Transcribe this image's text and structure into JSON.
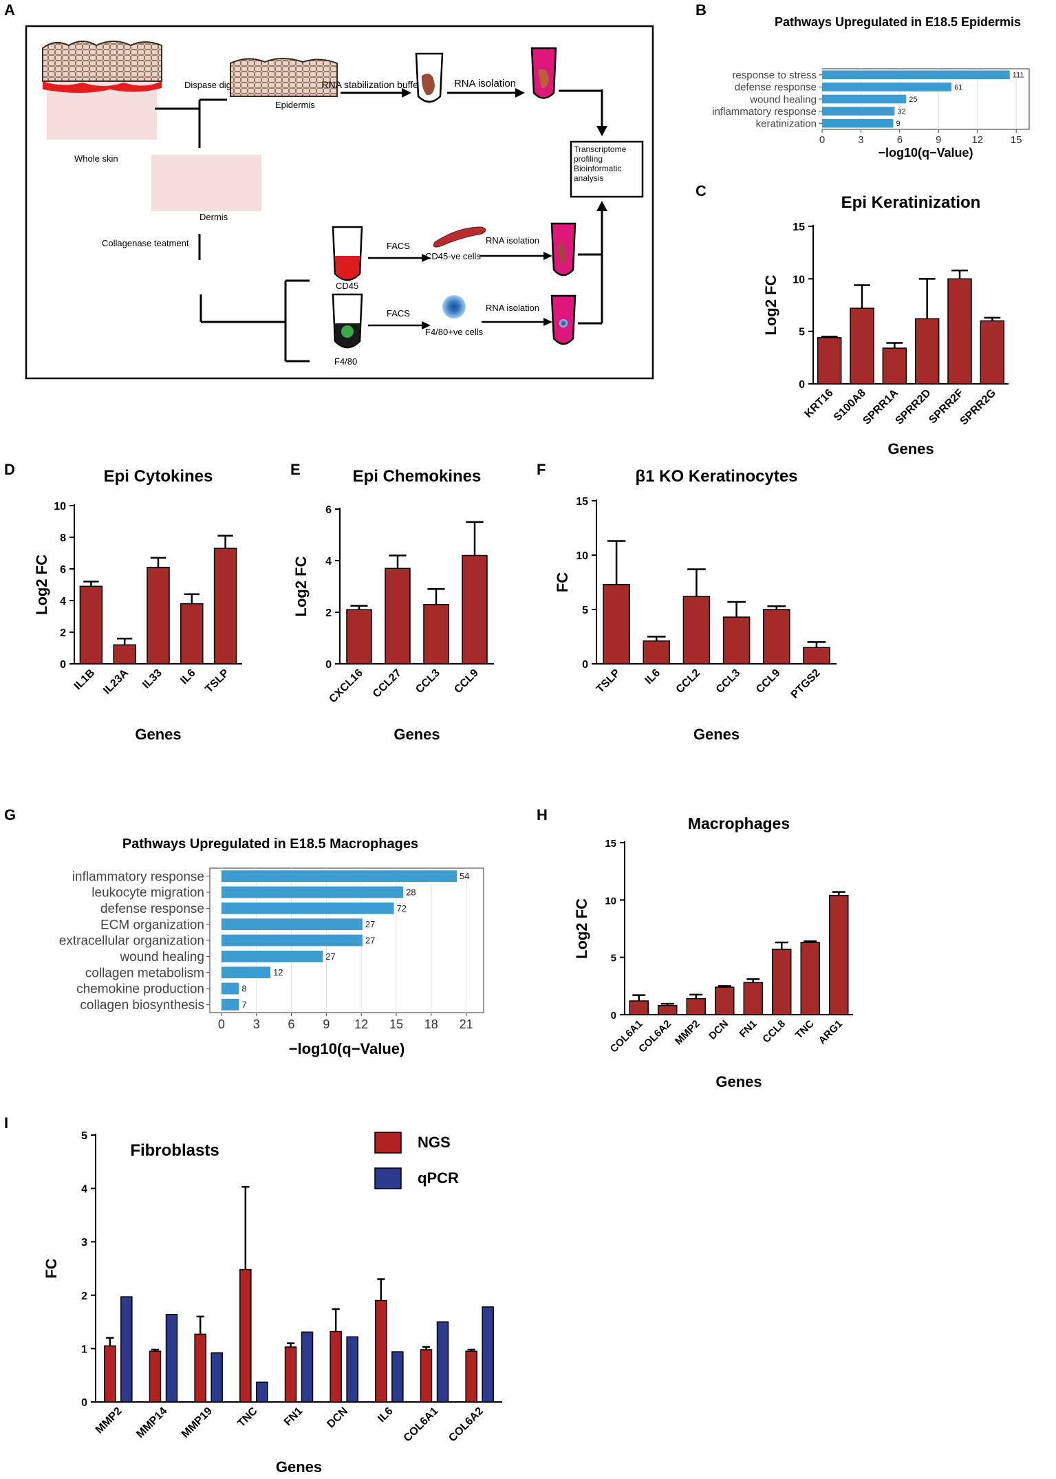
{
  "colors": {
    "bar": "#A52A2A",
    "bar_light": "#3C9CCF",
    "ngs": "#B22222",
    "qpcr": "#2B3A8F"
  },
  "panel_labels": [
    "A",
    "B",
    "C",
    "D",
    "E",
    "F",
    "G",
    "H",
    "I"
  ],
  "schematic": {
    "whole_skin": "Whole skin",
    "dispase": "Dispase digestion",
    "epidermis": "Epidermis",
    "rna_buffer": "RNA stabilization buffer",
    "rna_isolation_big": "RNA isolation",
    "transcriptome": "Transcriptome profiling Bioinformatic analysis",
    "dermis": "Dermis",
    "collagenase": "Collagenase teatment",
    "facs": "FACS",
    "cd45_cells": "CD45-ve cells",
    "rna_isolation": "RNA isolation",
    "cd45": "CD45",
    "f480_cells": "F4/80+ve cells",
    "f480": "F4/80"
  },
  "chart_data": [
    {
      "id": "B",
      "type": "bar",
      "orientation": "horizontal",
      "title": "Pathways Upregulated in E18.5 Epidermis",
      "xlabel": "−log10(q−Value)",
      "ylabel": "",
      "categories": [
        "response to stress",
        "defense response",
        "wound healing",
        "inflammatory response",
        "keratinization"
      ],
      "values": [
        14.5,
        10.0,
        6.5,
        5.6,
        5.5
      ],
      "data_labels": [
        "111",
        "61",
        "25",
        "32",
        "9"
      ],
      "xlim": [
        0,
        16
      ],
      "xticks": [
        "0",
        "3",
        "6",
        "9",
        "12",
        "15"
      ],
      "grid": true
    },
    {
      "id": "C",
      "type": "bar",
      "title": "Epi Keratinization",
      "xlabel": "Genes",
      "ylabel": "Log2 FC",
      "categories": [
        "KRT16",
        "S100A8",
        "SPRR1A",
        "SPRR2D",
        "SPRR2F",
        "SPRR2G"
      ],
      "values": [
        4.4,
        7.2,
        3.4,
        6.2,
        10.0,
        6.0
      ],
      "errors": [
        0.1,
        2.2,
        0.5,
        3.8,
        0.8,
        0.3
      ],
      "ylim": [
        0,
        15
      ],
      "yticks": [
        "0",
        "5",
        "10",
        "15"
      ]
    },
    {
      "id": "D",
      "type": "bar",
      "title": "Epi Cytokines",
      "xlabel": "Genes",
      "ylabel": "Log2 FC",
      "categories": [
        "IL1B",
        "IL23A",
        "IL33",
        "IL6",
        "TSLP"
      ],
      "values": [
        4.9,
        1.2,
        6.1,
        3.8,
        7.3
      ],
      "errors": [
        0.3,
        0.4,
        0.6,
        0.6,
        0.8
      ],
      "ylim": [
        0,
        10
      ],
      "yticks": [
        "0",
        "2",
        "4",
        "6",
        "8",
        "10"
      ]
    },
    {
      "id": "E",
      "type": "bar",
      "title": "Epi Chemokines",
      "xlabel": "Genes",
      "ylabel": "Log2 FC",
      "categories": [
        "CXCL16",
        "CCL27",
        "CCL3",
        "CCL9"
      ],
      "values": [
        2.1,
        3.7,
        2.3,
        4.2
      ],
      "errors": [
        0.15,
        0.5,
        0.6,
        1.3
      ],
      "ylim": [
        0,
        6
      ],
      "yticks": [
        "0",
        "2",
        "4",
        "6"
      ]
    },
    {
      "id": "F",
      "type": "bar",
      "title": "β1 KO Keratinocytes",
      "xlabel": "Genes",
      "ylabel": "FC",
      "categories": [
        "TSLP",
        "IL6",
        "CCL2",
        "CCL3",
        "CCL9",
        "PTGS2"
      ],
      "values": [
        7.3,
        2.1,
        6.2,
        4.3,
        5.0,
        1.5
      ],
      "errors": [
        4.0,
        0.4,
        2.5,
        1.4,
        0.3,
        0.5
      ],
      "ylim": [
        0,
        15
      ],
      "yticks": [
        "0",
        "5",
        "10",
        "15"
      ]
    },
    {
      "id": "G",
      "type": "bar",
      "orientation": "horizontal",
      "title": "Pathways Upregulated in E18.5 Macrophages",
      "xlabel": "−log10(q−Value)",
      "ylabel": "",
      "categories": [
        "inflammatory response",
        "leukocyte migration",
        "defense response",
        "ECM organization",
        "extracellular organization",
        "wound healing",
        "collagen metabolism",
        "chemokine production",
        "collagen biosynthesis"
      ],
      "values": [
        20.2,
        15.6,
        14.8,
        12.1,
        12.1,
        8.7,
        4.2,
        1.5,
        1.5
      ],
      "data_labels": [
        "54",
        "28",
        "72",
        "27",
        "27",
        "27",
        "12",
        "8",
        "7"
      ],
      "xlim": [
        -1,
        22.5
      ],
      "xticks": [
        "0",
        "3",
        "6",
        "9",
        "12",
        "15",
        "18",
        "21"
      ],
      "grid": true
    },
    {
      "id": "H",
      "type": "bar",
      "title": "Macrophages",
      "xlabel": "Genes",
      "ylabel": "Log2 FC",
      "categories": [
        "COL6A1",
        "COL6A2",
        "MMP2",
        "DCN",
        "FN1",
        "CCL8",
        "TNC",
        "ARG1"
      ],
      "values": [
        1.2,
        0.8,
        1.4,
        2.4,
        2.8,
        5.7,
        6.3,
        10.4
      ],
      "errors": [
        0.5,
        0.15,
        0.35,
        0.1,
        0.3,
        0.6,
        0.1,
        0.3
      ],
      "ylim": [
        0,
        15
      ],
      "yticks": [
        "0",
        "5",
        "10",
        "15"
      ]
    },
    {
      "id": "I",
      "type": "bar",
      "title": "Fibroblasts",
      "xlabel": "Genes",
      "ylabel": "FC",
      "categories": [
        "MMP2",
        "MMP14",
        "MMP19",
        "TNC",
        "FN1",
        "DCN",
        "IL6",
        "COL6A1",
        "COL6A2"
      ],
      "series": [
        {
          "name": "NGS",
          "values": [
            1.05,
            0.95,
            1.27,
            2.48,
            1.03,
            1.32,
            1.9,
            0.98,
            0.95
          ],
          "errors": [
            0.15,
            0.03,
            0.33,
            1.55,
            0.07,
            0.42,
            0.4,
            0.05,
            0.03
          ]
        },
        {
          "name": "qPCR",
          "values": [
            1.97,
            1.64,
            0.92,
            0.37,
            1.31,
            1.22,
            0.94,
            1.5,
            1.78
          ]
        }
      ],
      "ylim": [
        0,
        5
      ],
      "yticks": [
        "0",
        "1",
        "2",
        "3",
        "4",
        "5"
      ],
      "legend": "top-center"
    }
  ]
}
